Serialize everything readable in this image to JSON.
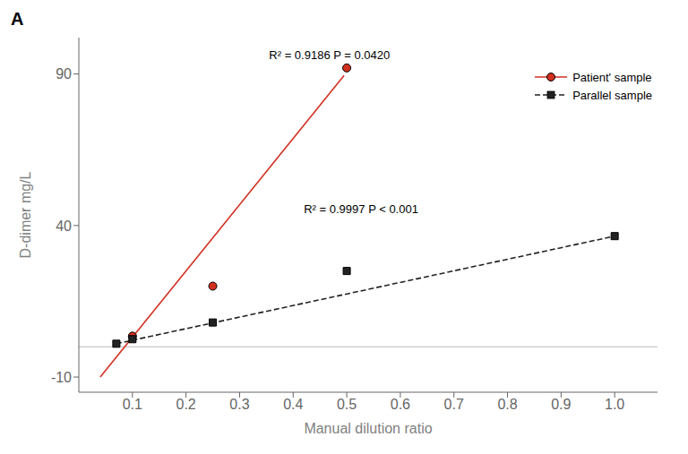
{
  "chart_data": {
    "type": "scatter",
    "title": "A",
    "xlabel": "Manual dilution ratio",
    "ylabel": "D-dimer mg/L",
    "xlim": [
      0.0,
      1.08
    ],
    "ylim": [
      -15,
      102
    ],
    "xticks": [
      0.1,
      0.2,
      0.3,
      0.4,
      0.5,
      0.6,
      0.7,
      0.8,
      0.9,
      {
        "value": 1.0,
        "label": "1.0"
      }
    ],
    "yticks": [
      -10,
      40,
      90
    ],
    "grid": false,
    "legend": "upper right",
    "hline_y": 0,
    "series": [
      {
        "name": "Patient' sample",
        "color": "#d03020",
        "marker": "circle",
        "line_style": "solid",
        "x": [
          0.1,
          0.25,
          0.5
        ],
        "values": [
          3.5,
          20.0,
          92.0
        ],
        "fit_x": [
          0.04,
          0.495
        ],
        "fit_values": [
          -10.0,
          89.5
        ]
      },
      {
        "name": "Parallel sample",
        "color": "#222222",
        "marker": "square",
        "line_style": "dashed",
        "x": [
          0.07,
          0.1,
          0.25,
          0.5,
          1.0
        ],
        "values": [
          1.0,
          2.5,
          8.0,
          25.0,
          36.5
        ],
        "fit_x": [
          0.07,
          1.0
        ],
        "fit_values": [
          1.0,
          36.5
        ]
      }
    ],
    "annotations": [
      {
        "text": "R² = 0.9186 P = 0.0420",
        "x": 0.355,
        "y": 95.0
      },
      {
        "text": "R² = 0.9997 P < 0.001",
        "x": 0.42,
        "y": 44.0
      }
    ]
  }
}
